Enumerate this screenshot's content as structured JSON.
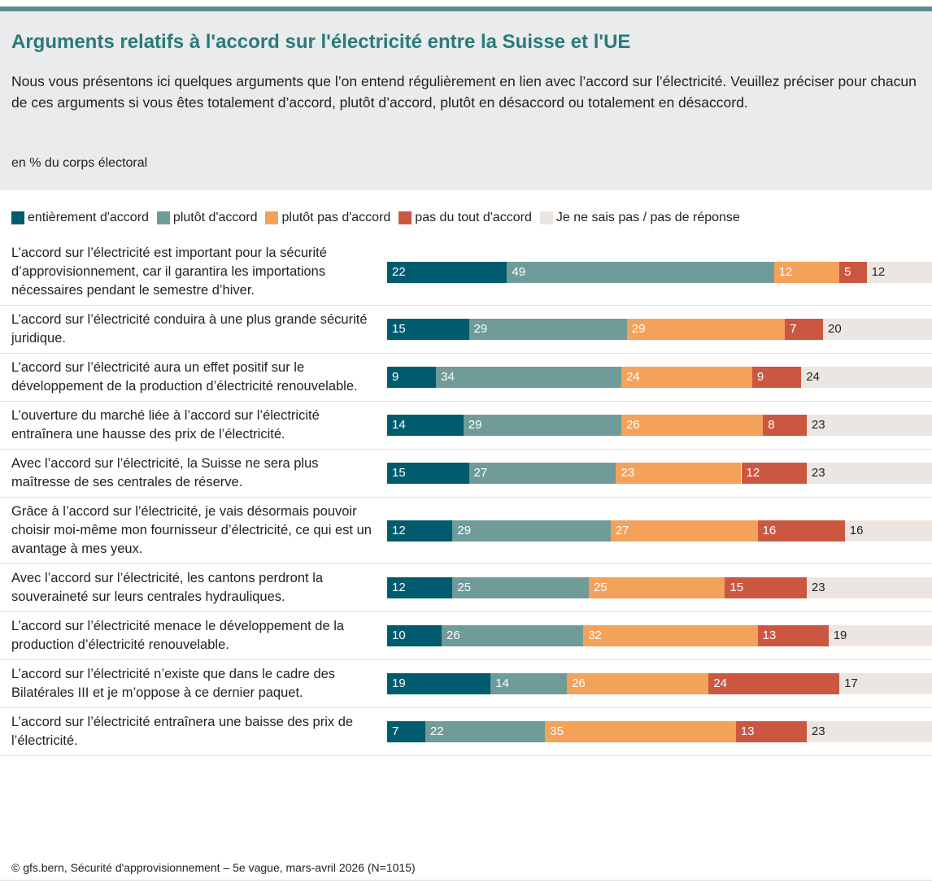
{
  "chart_data": {
    "type": "stacked_bar",
    "title": "Arguments relatifs à l'accord sur l'électricité entre la Suisse et l'UE",
    "description": "Nous vous présentons ici quelques arguments que l’on entend régulièrement en lien avec l’accord sur l’électricité. Veuillez préciser pour chacun de ces arguments si vous êtes totalement d’accord, plutôt d’accord, plutôt en désaccord ou totalement en désaccord.",
    "unit_note": "en % du corps électoral",
    "categories": [
      "L’accord sur l’électricité est important pour la sécurité d’approvisionnement, car il garantira les importations nécessaires pendant le semestre d’hiver.",
      "L’accord sur l’électricité conduira à une plus grande sécurité juridique.",
      "L’accord sur l’électricité aura un effet positif sur le développement de la production d’électricité renouvelable.",
      "L’ouverture du marché liée à l’accord sur l’électricité entraînera une hausse des prix de l’électricité.",
      "Avec l’accord sur l’électricité, la Suisse ne sera plus maîtresse de ses centrales de réserve.",
      "Grâce à l’accord sur l’électricité, je vais désormais pouvoir choisir moi-même mon fournisseur d’électricité, ce qui est un avantage à mes yeux.",
      "Avec l’accord sur l’électricité, les cantons perdront la souveraineté sur leurs centrales hydrauliques.",
      "L’accord sur l’électricité menace le développement de la production d’électricité renouvelable.",
      "L’accord sur l’électricité n’existe que dans le cadre des Bilatérales III et je m’oppose à ce dernier paquet.",
      "L’accord sur l’électricité entraînera une baisse des prix de l’électricité."
    ],
    "series": [
      {
        "name": "entièrement d'accord",
        "color": "#005b6e",
        "values": [
          22,
          15,
          9,
          14,
          15,
          12,
          12,
          10,
          19,
          7
        ]
      },
      {
        "name": "plutôt d'accord",
        "color": "#6f9c98",
        "values": [
          49,
          29,
          34,
          29,
          27,
          29,
          25,
          26,
          14,
          22
        ]
      },
      {
        "name": "plutôt pas d'accord",
        "color": "#f4a15a",
        "values": [
          12,
          29,
          24,
          26,
          23,
          27,
          25,
          32,
          26,
          35
        ]
      },
      {
        "name": "pas du tout d'accord",
        "color": "#cb5741",
        "values": [
          5,
          7,
          9,
          8,
          12,
          16,
          15,
          13,
          24,
          13
        ]
      },
      {
        "name": "Je ne sais pas / pas de réponse",
        "color": "#ece6e2",
        "values": [
          12,
          20,
          24,
          23,
          23,
          16,
          23,
          19,
          17,
          23
        ]
      }
    ],
    "xlim": [
      0,
      100
    ],
    "source": "© gfs.bern, Sécurité d'approvisionnement – 5e vague, mars-avril 2026 (N=1015)"
  }
}
